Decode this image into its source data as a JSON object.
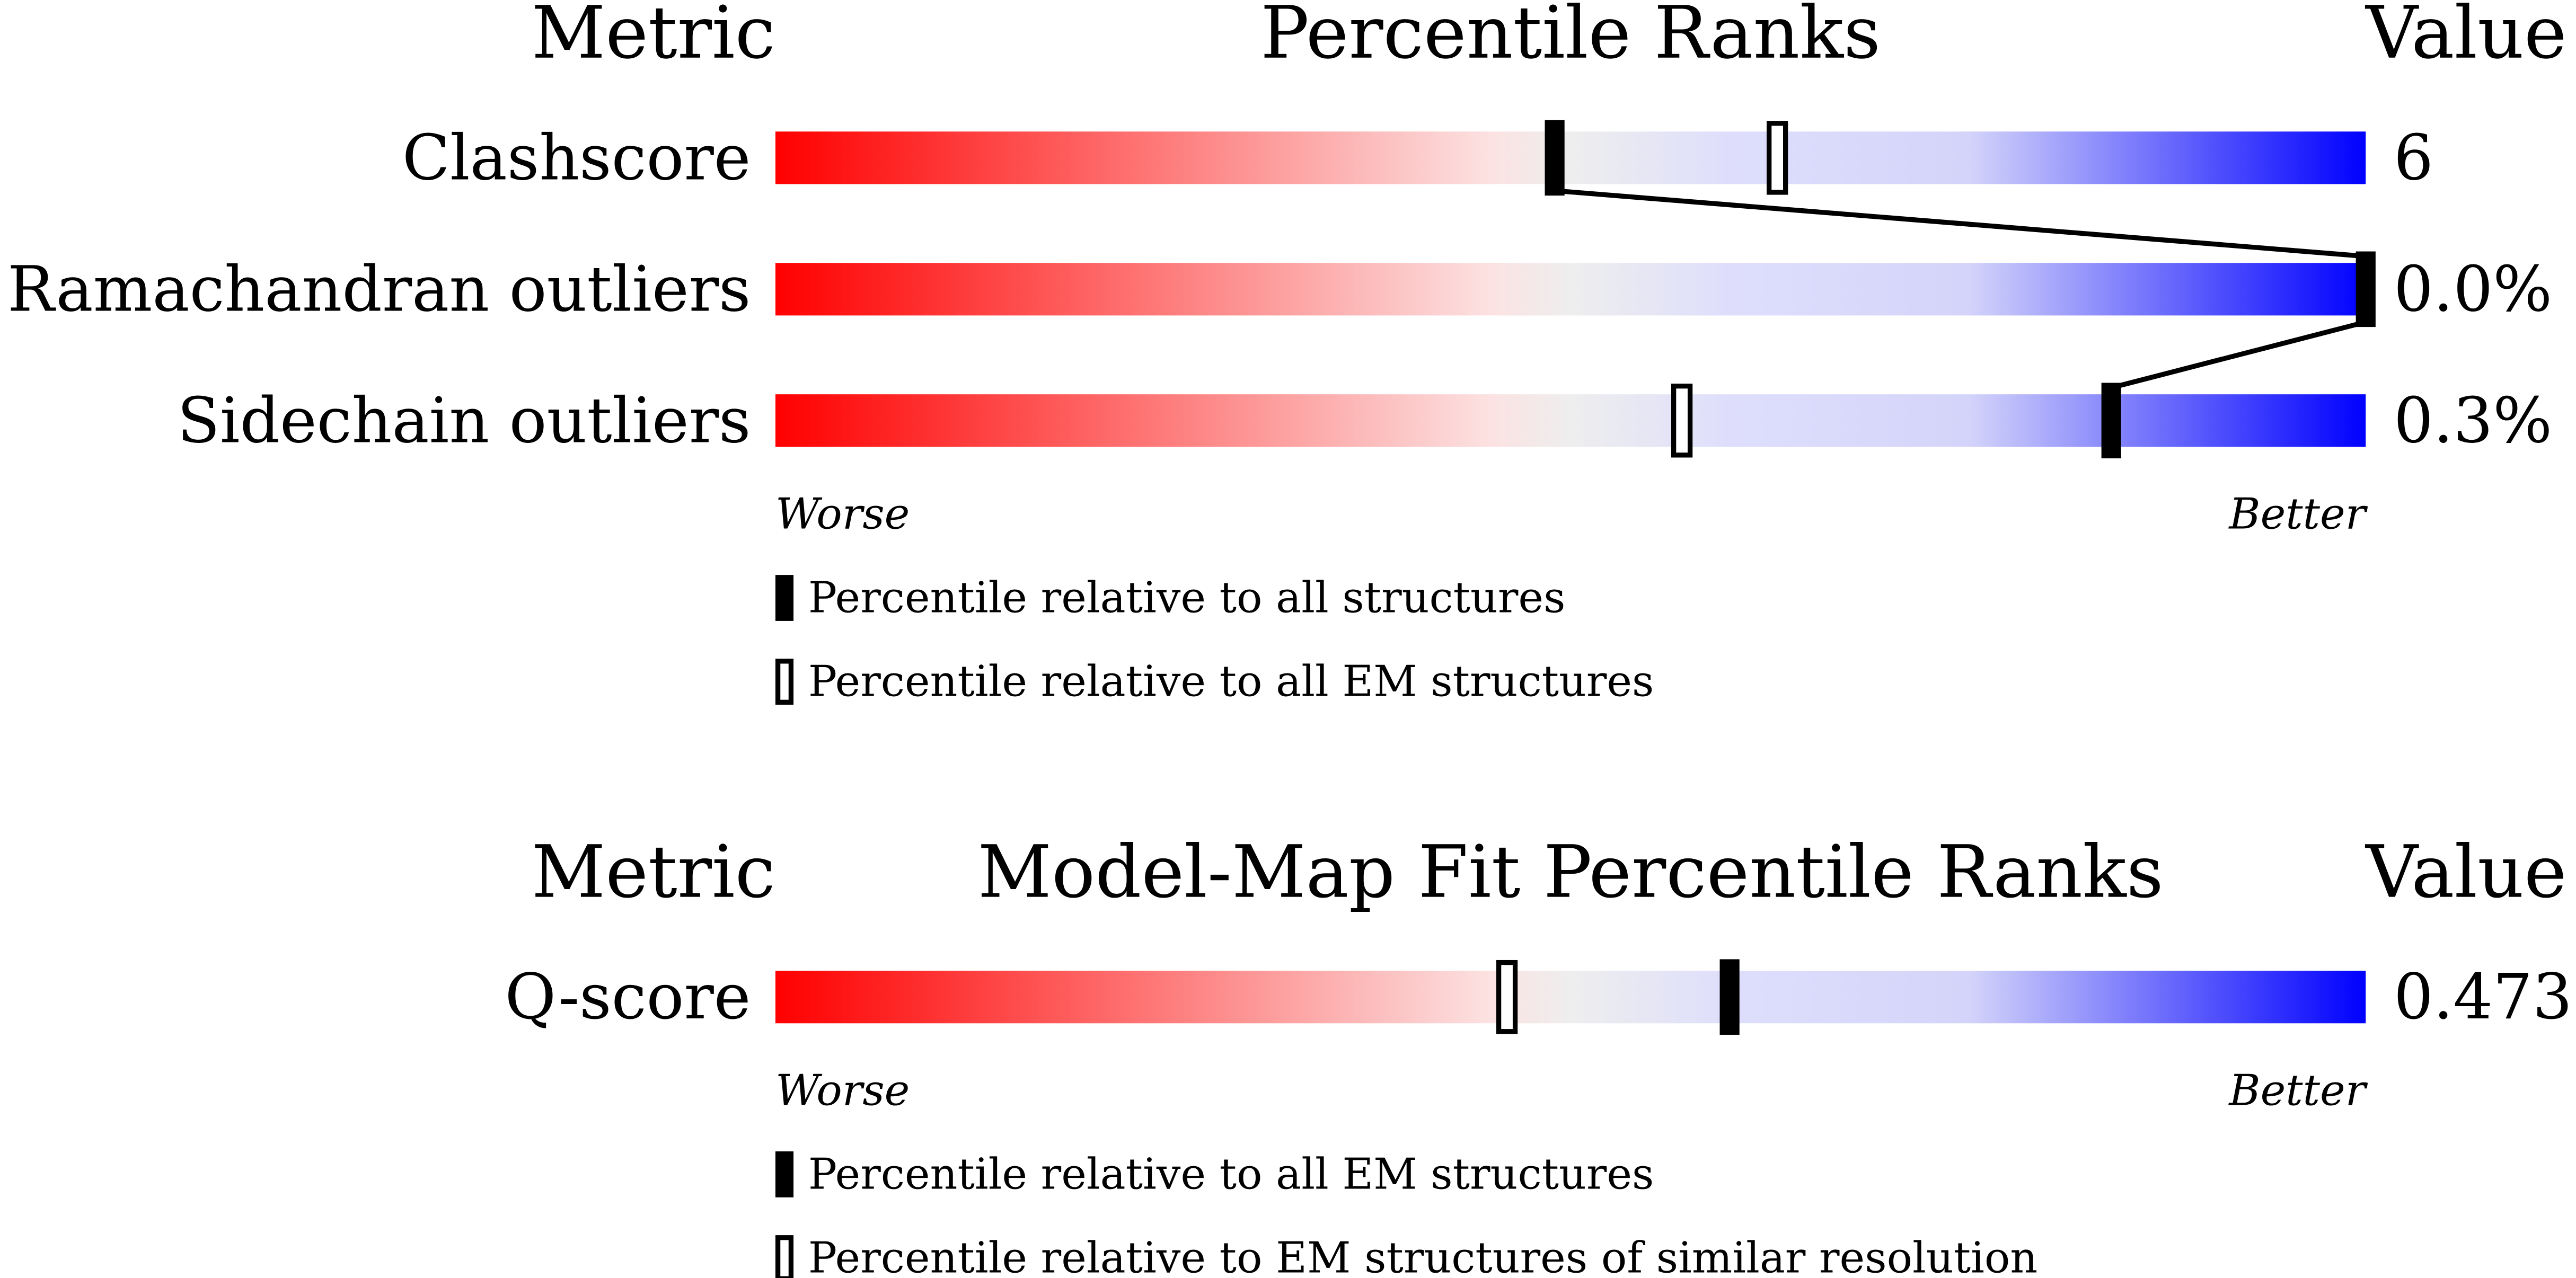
{
  "chart_data": [
    {
      "type": "percentile",
      "header_left": "Metric",
      "title": "Percentile Ranks",
      "header_right": "Value",
      "categories": [
        "Clashscore",
        "Ramachandran outliers",
        "Sidechain outliers"
      ],
      "metric_values": [
        "6",
        "0.0%",
        "0.3%"
      ],
      "series": [
        {
          "name": "Percentile relative to all structures",
          "style": "filled",
          "values": [
            49,
            100,
            84
          ]
        },
        {
          "name": "Percentile relative to all EM structures",
          "style": "open",
          "values": [
            63,
            null,
            57
          ]
        }
      ],
      "xlim": [
        0,
        100
      ],
      "left_label": "Worse",
      "right_label": "Better",
      "connect": true
    },
    {
      "type": "percentile",
      "header_left": "Metric",
      "title": "Model-Map Fit Percentile Ranks",
      "header_right": "Value",
      "categories": [
        "Q-score"
      ],
      "metric_values": [
        "0.473"
      ],
      "series": [
        {
          "name": "Percentile relative to all EM structures",
          "style": "filled",
          "values": [
            60
          ]
        },
        {
          "name": "Percentile relative to EM structures of similar resolution",
          "style": "open",
          "values": [
            46
          ]
        }
      ],
      "xlim": [
        0,
        100
      ],
      "left_label": "Worse",
      "right_label": "Better",
      "connect": true
    }
  ]
}
